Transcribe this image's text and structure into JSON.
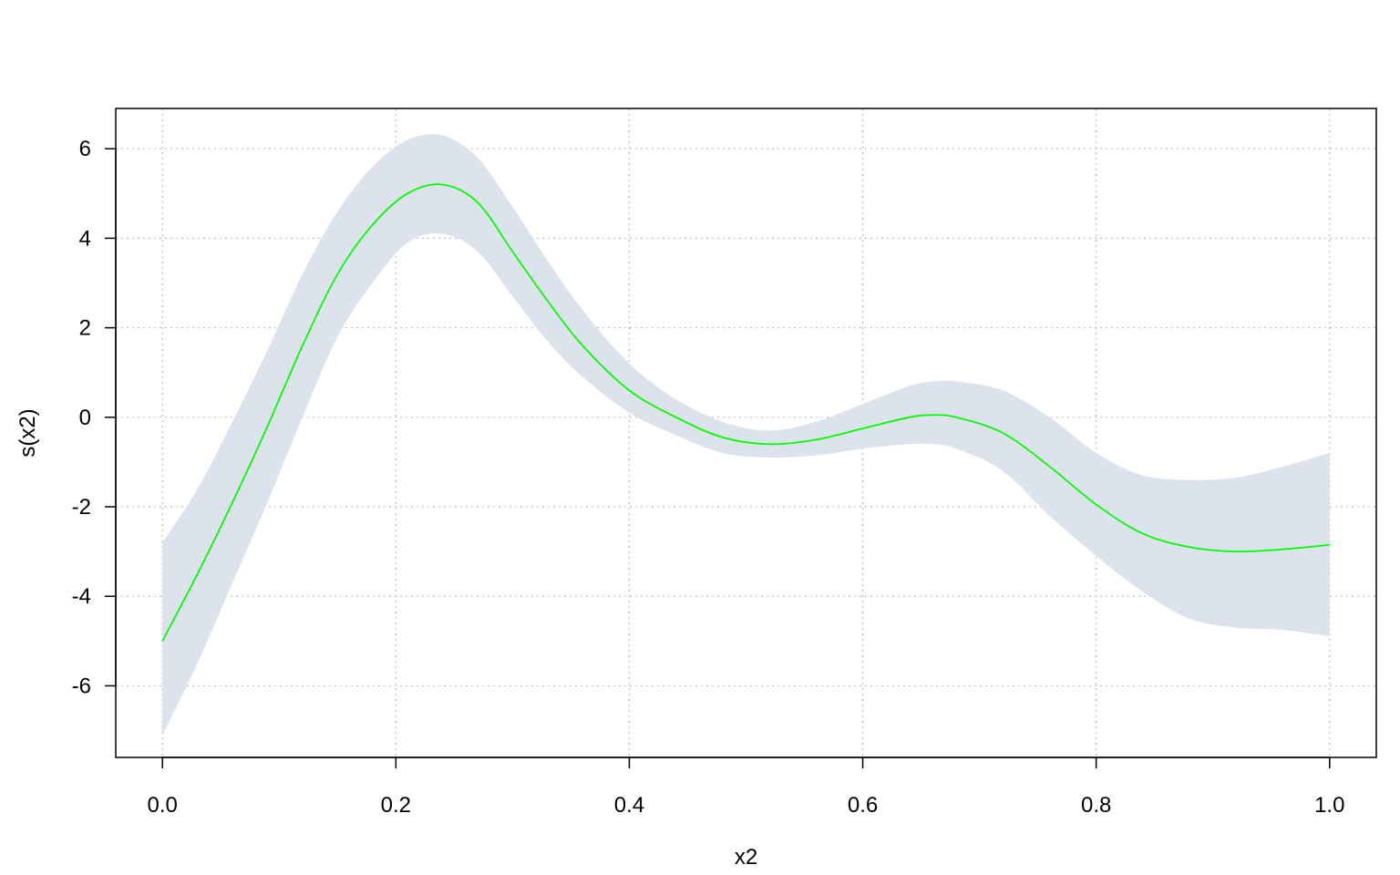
{
  "chart_data": {
    "type": "line",
    "xlabel": "x2",
    "ylabel": "s(x2)",
    "xlim": [
      -0.04,
      1.04
    ],
    "ylim": [
      -7.6,
      6.9
    ],
    "x_ticks": [
      0.0,
      0.2,
      0.4,
      0.6,
      0.8,
      1.0
    ],
    "x_tick_labels": [
      "0.0",
      "0.2",
      "0.4",
      "0.6",
      "0.8",
      "1.0"
    ],
    "y_ticks": [
      -6,
      -4,
      -2,
      0,
      2,
      4,
      6
    ],
    "y_tick_labels": [
      "-6",
      "-4",
      "-2",
      "0",
      "2",
      "4",
      "6"
    ],
    "grid": true,
    "series": [
      {
        "style": "confidence-band",
        "x": [
          0.0,
          0.03,
          0.06,
          0.09,
          0.12,
          0.15,
          0.18,
          0.21,
          0.24,
          0.27,
          0.3,
          0.33,
          0.36,
          0.4,
          0.44,
          0.48,
          0.52,
          0.56,
          0.6,
          0.64,
          0.66,
          0.68,
          0.72,
          0.76,
          0.8,
          0.84,
          0.88,
          0.92,
          0.96,
          1.0
        ],
        "lower": [
          -7.1,
          -5.5,
          -3.7,
          -1.9,
          0.0,
          1.8,
          3.0,
          3.9,
          4.1,
          3.7,
          2.7,
          1.7,
          0.9,
          0.1,
          -0.4,
          -0.8,
          -0.9,
          -0.85,
          -0.7,
          -0.6,
          -0.6,
          -0.7,
          -1.2,
          -2.2,
          -3.1,
          -3.9,
          -4.5,
          -4.7,
          -4.75,
          -4.9
        ],
        "upper": [
          -2.8,
          -1.6,
          -0.1,
          1.5,
          3.2,
          4.6,
          5.6,
          6.2,
          6.3,
          5.8,
          4.7,
          3.5,
          2.4,
          1.2,
          0.4,
          -0.1,
          -0.3,
          -0.1,
          0.3,
          0.7,
          0.8,
          0.8,
          0.6,
          0.0,
          -0.8,
          -1.3,
          -1.4,
          -1.35,
          -1.1,
          -0.8
        ]
      },
      {
        "style": "fit-line",
        "color": "#00ff00",
        "x": [
          0.0,
          0.03,
          0.06,
          0.09,
          0.12,
          0.15,
          0.18,
          0.21,
          0.24,
          0.27,
          0.3,
          0.33,
          0.36,
          0.4,
          0.44,
          0.48,
          0.52,
          0.56,
          0.6,
          0.64,
          0.66,
          0.68,
          0.72,
          0.76,
          0.8,
          0.84,
          0.88,
          0.92,
          0.96,
          1.0
        ],
        "y": [
          -5.0,
          -3.5,
          -1.9,
          -0.2,
          1.6,
          3.2,
          4.3,
          5.0,
          5.2,
          4.8,
          3.7,
          2.6,
          1.6,
          0.6,
          0.0,
          -0.45,
          -0.6,
          -0.5,
          -0.25,
          0.0,
          0.05,
          0.0,
          -0.35,
          -1.1,
          -1.95,
          -2.6,
          -2.9,
          -3.0,
          -2.95,
          -2.85
        ]
      }
    ],
    "colors": {
      "band": "#dce3ec",
      "line": "#00ff00",
      "grid": "#bdbdbd",
      "axis": "#000000"
    }
  }
}
